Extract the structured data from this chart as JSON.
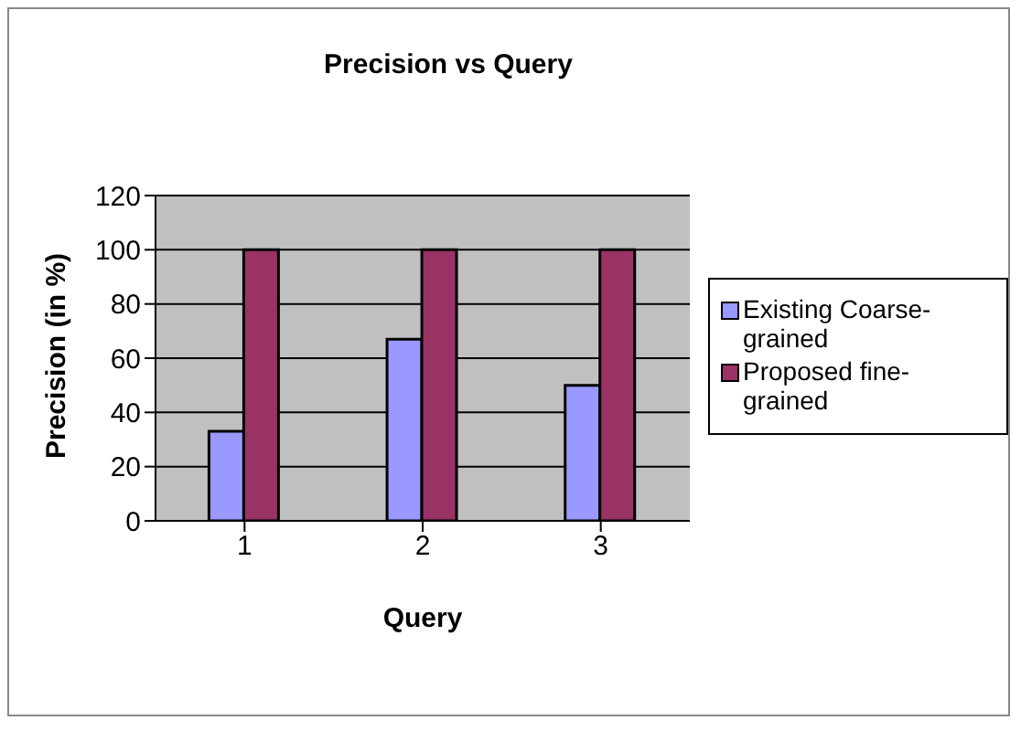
{
  "chart_data": {
    "type": "bar",
    "title": "Precision vs Query",
    "xlabel": "Query",
    "ylabel": "Precision (in %)",
    "categories": [
      "1",
      "2",
      "3"
    ],
    "series": [
      {
        "name": "Existing Coarse-grained",
        "color": "#9999ff",
        "values": [
          33,
          67,
          50
        ]
      },
      {
        "name": "Proposed fine-grained",
        "color": "#993366",
        "values": [
          100,
          100,
          100
        ]
      }
    ],
    "ylim": [
      0,
      120
    ],
    "yticks": [
      0,
      20,
      40,
      60,
      80,
      100,
      120
    ],
    "grid": "y",
    "legend": "right"
  }
}
